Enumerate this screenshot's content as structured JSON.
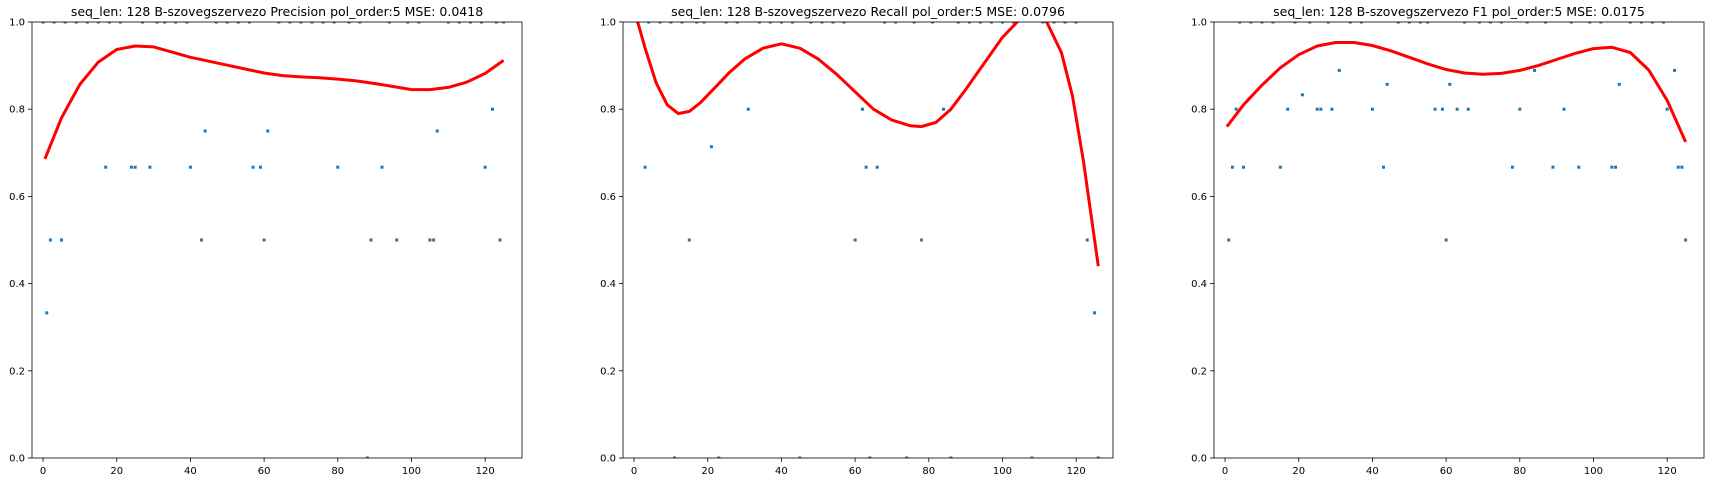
{
  "page": {
    "bg_color": "#ffffff"
  },
  "chart_data": [
    {
      "type": "scatter",
      "title": "seq_len: 128    B-szovegszervezo   Precision   pol_order:5   MSE: 0.0418",
      "xlim": [
        -3,
        130
      ],
      "ylim": [
        0,
        1
      ],
      "xticks": [
        0,
        20,
        40,
        60,
        80,
        100,
        120
      ],
      "yticks": [
        0.0,
        0.2,
        0.4,
        0.6,
        0.8,
        1.0
      ],
      "grid": false,
      "point_color": "#1f77b4",
      "fit_color": "#ff0000",
      "points": {
        "x": [
          1,
          2,
          5,
          17,
          24,
          25,
          29,
          40,
          43,
          44,
          57,
          59,
          60,
          61,
          80,
          88,
          89,
          92,
          96,
          105,
          106,
          107,
          120,
          122,
          124,
          0,
          3,
          6,
          9,
          12,
          15,
          18,
          21,
          27,
          31,
          33,
          36,
          39,
          47,
          50,
          53,
          56,
          64,
          67,
          70,
          73,
          76,
          79,
          83,
          86,
          94,
          99,
          102,
          110,
          113,
          116,
          119,
          123,
          125
        ],
        "y": [
          0.333,
          0.5,
          0.5,
          0.667,
          0.667,
          0.667,
          0.667,
          0.667,
          0.5,
          0.75,
          0.667,
          0.667,
          0.5,
          0.75,
          0.667,
          0,
          0.5,
          0.667,
          0.5,
          0.5,
          0.5,
          0.75,
          0.667,
          0.8,
          0.5,
          1,
          1,
          1,
          1,
          1,
          1,
          1,
          1,
          1,
          1,
          1,
          1,
          1,
          1,
          1,
          1,
          1,
          1,
          1,
          1,
          1,
          1,
          1,
          1,
          1,
          1,
          1,
          1,
          1,
          1,
          1,
          1,
          1,
          1
        ]
      },
      "fit_curve": {
        "x": [
          0.5,
          5,
          10,
          15,
          20,
          25,
          30,
          35,
          40,
          45,
          50,
          55,
          60,
          65,
          70,
          75,
          80,
          85,
          90,
          95,
          100,
          105,
          110,
          115,
          120,
          125
        ],
        "y": [
          0.686,
          0.78,
          0.857,
          0.908,
          0.937,
          0.945,
          0.943,
          0.931,
          0.919,
          0.91,
          0.901,
          0.892,
          0.883,
          0.877,
          0.874,
          0.872,
          0.869,
          0.865,
          0.859,
          0.852,
          0.845,
          0.845,
          0.85,
          0.862,
          0.882,
          0.912
        ]
      }
    },
    {
      "type": "scatter",
      "title": "seq_len: 128    B-szovegszervezo   Recall   pol_order:5   MSE: 0.0796",
      "xlim": [
        -3,
        130
      ],
      "ylim": [
        0,
        1
      ],
      "xticks": [
        0,
        20,
        40,
        60,
        80,
        100,
        120
      ],
      "yticks": [
        0.0,
        0.2,
        0.4,
        0.6,
        0.8,
        1.0
      ],
      "grid": false,
      "point_color": "#1f77b4",
      "fit_color": "#ff0000",
      "points": {
        "x": [
          3,
          11,
          15,
          21,
          23,
          31,
          45,
          60,
          62,
          63,
          64,
          66,
          74,
          78,
          84,
          86,
          108,
          123,
          125,
          126,
          1,
          4,
          7,
          10,
          13,
          17,
          19,
          25,
          28,
          34,
          37,
          40,
          43,
          48,
          51,
          54,
          57,
          68,
          71,
          76,
          81,
          88,
          91,
          94,
          97,
          100,
          103,
          111,
          114,
          117,
          120
        ],
        "y": [
          0.667,
          0,
          0.5,
          0.714,
          0,
          0.8,
          0,
          0.5,
          0.8,
          0.667,
          0,
          0.667,
          0,
          0.5,
          0.8,
          0,
          0,
          0.5,
          0.333,
          0,
          1,
          1,
          1,
          1,
          1,
          1,
          1,
          1,
          1,
          1,
          1,
          1,
          1,
          1,
          1,
          1,
          1,
          1,
          1,
          1,
          1,
          1,
          1,
          1,
          1,
          1,
          1,
          1,
          1,
          1,
          1
        ]
      },
      "fit_curve": {
        "x": [
          1,
          3,
          6,
          9,
          12,
          15,
          18,
          22,
          26,
          30,
          35,
          40,
          45,
          50,
          55,
          60,
          65,
          70,
          75,
          78,
          82,
          86,
          90,
          95,
          100,
          104,
          108,
          112,
          116,
          119,
          122,
          124,
          126
        ],
        "y": [
          1.0,
          0.94,
          0.86,
          0.81,
          0.79,
          0.795,
          0.815,
          0.85,
          0.885,
          0.915,
          0.94,
          0.95,
          0.94,
          0.915,
          0.88,
          0.84,
          0.8,
          0.775,
          0.762,
          0.76,
          0.77,
          0.8,
          0.845,
          0.905,
          0.965,
          1.0,
          1.02,
          1.0,
          0.93,
          0.83,
          0.68,
          0.56,
          0.44
        ]
      }
    },
    {
      "type": "scatter",
      "title": "seq_len: 128    B-szovegszervezo   F1   pol_order:5   MSE: 0.0175",
      "xlim": [
        -3,
        130
      ],
      "ylim": [
        0,
        1
      ],
      "xticks": [
        0,
        20,
        40,
        60,
        80,
        100,
        120
      ],
      "yticks": [
        0.0,
        0.2,
        0.4,
        0.6,
        0.8,
        1.0
      ],
      "grid": false,
      "point_color": "#1f77b4",
      "fit_color": "#ff0000",
      "points": {
        "x": [
          1,
          2,
          3,
          5,
          15,
          17,
          21,
          25,
          26,
          29,
          31,
          40,
          43,
          44,
          57,
          59,
          60,
          61,
          63,
          66,
          78,
          80,
          84,
          89,
          92,
          96,
          105,
          106,
          107,
          120,
          122,
          123,
          124,
          125,
          4,
          7,
          10,
          13,
          19,
          23,
          28,
          34,
          37,
          47,
          50,
          53,
          55,
          65,
          69,
          72,
          75,
          82,
          87,
          94,
          99,
          102,
          110,
          113,
          116,
          119
        ],
        "y": [
          0.5,
          0.667,
          0.8,
          0.667,
          0.667,
          0.8,
          0.833,
          0.8,
          0.8,
          0.8,
          0.889,
          0.8,
          0.667,
          0.857,
          0.8,
          0.8,
          0.5,
          0.857,
          0.8,
          0.8,
          0.667,
          0.8,
          0.889,
          0.667,
          0.8,
          0.667,
          0.667,
          0.667,
          0.857,
          0.8,
          0.889,
          0.667,
          0.667,
          0.5,
          1,
          1,
          1,
          1,
          1,
          1,
          1,
          1,
          1,
          1,
          1,
          1,
          1,
          1,
          1,
          1,
          1,
          1,
          1,
          1,
          1,
          1,
          1,
          1,
          1,
          1
        ]
      },
      "fit_curve": {
        "x": [
          0.5,
          5,
          10,
          15,
          20,
          25,
          30,
          35,
          40,
          45,
          50,
          55,
          60,
          65,
          70,
          75,
          80,
          85,
          90,
          95,
          100,
          105,
          110,
          115,
          120,
          125
        ],
        "y": [
          0.76,
          0.81,
          0.855,
          0.895,
          0.925,
          0.945,
          0.953,
          0.953,
          0.946,
          0.934,
          0.919,
          0.904,
          0.891,
          0.883,
          0.88,
          0.882,
          0.889,
          0.9,
          0.914,
          0.928,
          0.939,
          0.942,
          0.93,
          0.89,
          0.82,
          0.725
        ]
      }
    }
  ]
}
